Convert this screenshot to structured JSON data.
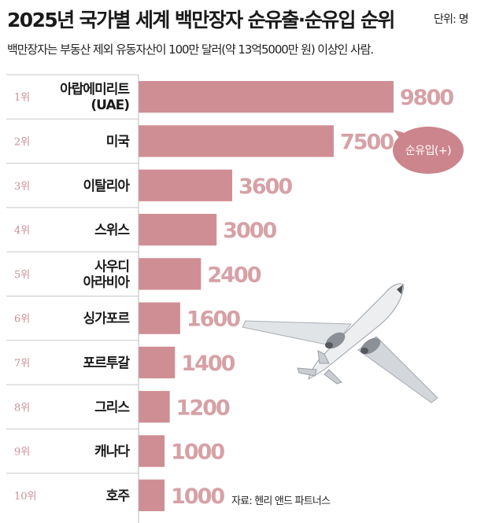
{
  "title": "2025년 국가별 세계 백만장자 순유출·순유입 순위",
  "unit": "단위: 명",
  "subtitle": "백만장자는 부동산 제외 유동자산이 100만 달러(약 13억5000만 원) 이상인 사람.",
  "source": "자료: 헨리 앤드 파트너스",
  "callout": "순유입(+)",
  "colors": {
    "bar": "#cf8e94",
    "value": "#d6a1a6",
    "rank": "#c98f96",
    "bubble": "#cc858d"
  },
  "chart_data": {
    "type": "bar",
    "orientation": "horizontal",
    "ranks": [
      "1위",
      "2위",
      "3위",
      "4위",
      "5위",
      "6위",
      "7위",
      "8위",
      "9위",
      "10위"
    ],
    "categories": [
      [
        "아랍에미리트",
        "(UAE)"
      ],
      [
        "미국"
      ],
      [
        "이탈리아"
      ],
      [
        "스위스"
      ],
      [
        "사우디",
        "아라비아"
      ],
      [
        "싱가포르"
      ],
      [
        "포르투갈"
      ],
      [
        "그리스"
      ],
      [
        "캐나다"
      ],
      [
        "호주"
      ]
    ],
    "values": [
      9800,
      7500,
      3600,
      3000,
      2400,
      1600,
      1400,
      1200,
      1000,
      1000
    ],
    "value_labels": [
      "9800",
      "7500",
      "3600",
      "3000",
      "2400",
      "1600",
      "1400",
      "1200",
      "1000",
      "1000"
    ],
    "xlim": [
      0,
      10000
    ]
  }
}
